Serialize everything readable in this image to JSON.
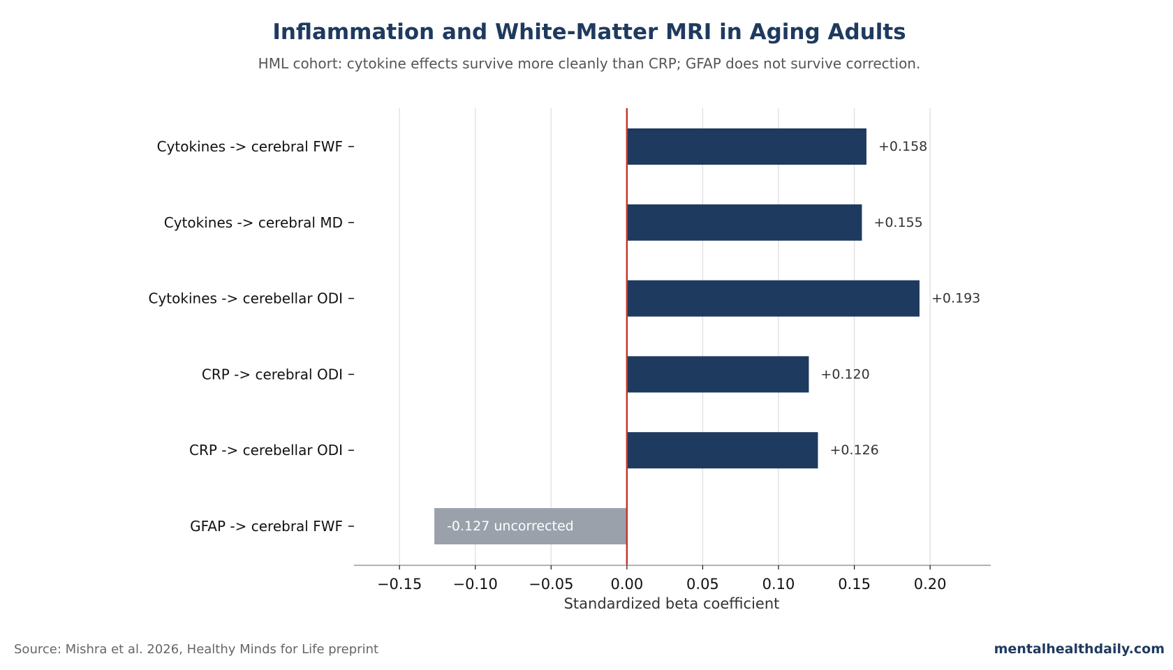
{
  "chart_data": {
    "type": "bar",
    "orientation": "horizontal",
    "title": "Inflammation and White-Matter MRI in Aging Adults",
    "subtitle": "HML cohort: cytokine effects survive more cleanly than CRP; GFAP does not survive correction.",
    "xlabel": "Standardized beta coefficient",
    "ylabel": "",
    "xlim": [
      -0.18,
      0.24
    ],
    "xticks": [
      -0.15,
      -0.1,
      -0.05,
      0.0,
      0.05,
      0.1,
      0.15,
      0.2
    ],
    "xtick_labels": [
      "−0.15",
      "−0.10",
      "−0.05",
      "0.00",
      "0.05",
      "0.10",
      "0.15",
      "0.20"
    ],
    "grid": "vertical",
    "reference_line": 0,
    "categories": [
      "Cytokines -> cerebral FWF",
      "Cytokines -> cerebral MD",
      "Cytokines -> cerebellar ODI",
      "CRP -> cerebral ODI",
      "CRP -> cerebellar ODI",
      "GFAP -> cerebral FWF"
    ],
    "values": [
      0.158,
      0.155,
      0.193,
      0.12,
      0.126,
      -0.127
    ],
    "value_labels": [
      "+0.158",
      "+0.155",
      "+0.193",
      "+0.120",
      "+0.126",
      "-0.127 uncorrected"
    ],
    "label_inside": [
      false,
      false,
      false,
      false,
      false,
      true
    ],
    "significant": [
      true,
      true,
      true,
      true,
      true,
      false
    ],
    "colors": {
      "significant": "#1f3a5f",
      "nonsignificant": "#9aa1ab",
      "reference_line": "#c0392b",
      "grid": "#dddddd",
      "axis": "#999999"
    }
  },
  "footer": {
    "source": "Source: Mishra et al. 2026, Healthy Minds for Life preprint",
    "brand": "mentalhealthdaily.com"
  }
}
